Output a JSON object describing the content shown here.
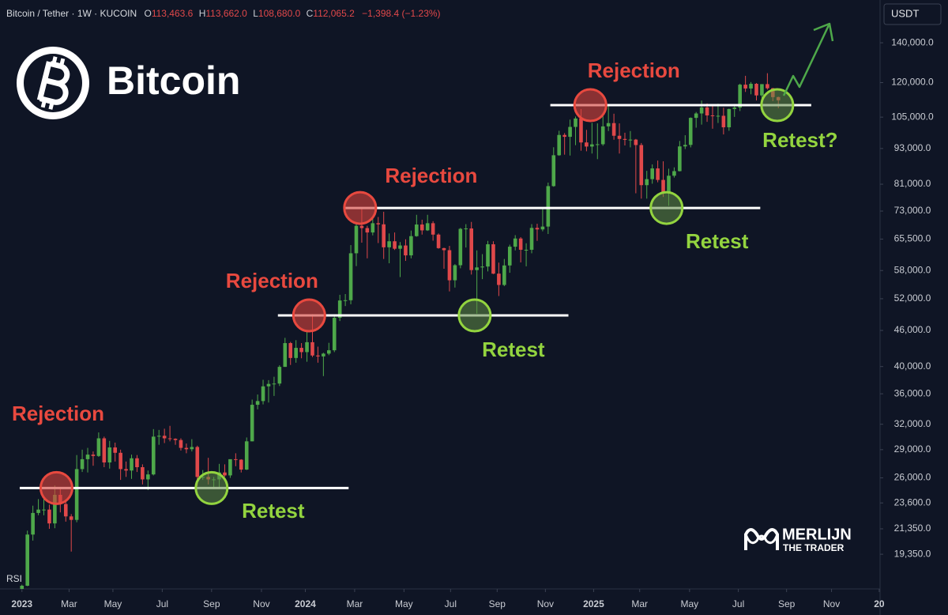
{
  "header": {
    "symbol": "Bitcoin / Tether · 1W · KUCOIN",
    "ohlc": [
      {
        "key": "O",
        "value": "113,463.6"
      },
      {
        "key": "H",
        "value": "113,662.0"
      },
      {
        "key": "L",
        "value": "108,680.0"
      },
      {
        "key": "C",
        "value": "112,065.2"
      }
    ],
    "change": "−1,398.4 (−1.23%)"
  },
  "logo": {
    "name": "Bitcoin"
  },
  "currency": "USDT",
  "indicator": "RSI",
  "watermark": {
    "line1": "MERLIJN",
    "line2": "THE TRADER"
  },
  "chart_data": {
    "type": "candlestick",
    "log_scale": true,
    "up_color": "#4ea84a",
    "down_color": "#e0484a",
    "xlim": [
      -4,
      156.7
    ],
    "xticks": [
      {
        "value": 0,
        "label": "2023"
      },
      {
        "value": 8.6,
        "label": "Mar"
      },
      {
        "value": 16.6,
        "label": "May"
      },
      {
        "value": 25.6,
        "label": "Jul"
      },
      {
        "value": 34.6,
        "label": "Sep"
      },
      {
        "value": 43.7,
        "label": "Nov"
      },
      {
        "value": 51.7,
        "label": "2024"
      },
      {
        "value": 60.7,
        "label": "Mar"
      },
      {
        "value": 69.7,
        "label": "May"
      },
      {
        "value": 78.2,
        "label": "Jul"
      },
      {
        "value": 86.7,
        "label": "Sep"
      },
      {
        "value": 95.5,
        "label": "Nov"
      },
      {
        "value": 104.3,
        "label": "2025"
      },
      {
        "value": 112.7,
        "label": "Mar"
      },
      {
        "value": 121.8,
        "label": "May"
      },
      {
        "value": 130.7,
        "label": "Jul"
      },
      {
        "value": 139.5,
        "label": "Sep"
      },
      {
        "value": 147.7,
        "label": "Nov"
      },
      {
        "value": 156.4,
        "label": "20"
      }
    ],
    "ylim": [
      16920,
      165200
    ],
    "yticks": [
      {
        "value": 19350,
        "label": "19,350.0"
      },
      {
        "value": 21350,
        "label": "21,350.0"
      },
      {
        "value": 23600,
        "label": "23,600.0"
      },
      {
        "value": 26000,
        "label": "26,000.0"
      },
      {
        "value": 29000,
        "label": "29,000.0"
      },
      {
        "value": 32000,
        "label": "32,000.0"
      },
      {
        "value": 36000,
        "label": "36,000.0"
      },
      {
        "value": 40000,
        "label": "40,000.0"
      },
      {
        "value": 46000,
        "label": "46,000.0"
      },
      {
        "value": 52000,
        "label": "52,000.0"
      },
      {
        "value": 58000,
        "label": "58,000.0"
      },
      {
        "value": 65500,
        "label": "65,500.0"
      },
      {
        "value": 73000,
        "label": "73,000.0"
      },
      {
        "value": 81000,
        "label": "81,000.0"
      },
      {
        "value": 93000,
        "label": "93,000.0"
      },
      {
        "value": 105000,
        "label": "105,000.0"
      },
      {
        "value": 120000,
        "label": "120,000.0"
      },
      {
        "value": 140000,
        "label": "140,000.0"
      }
    ],
    "open": [
      16600,
      17130,
      20880,
      22700,
      23000,
      23000,
      21800,
      24350,
      23500,
      22400,
      22100,
      26900,
      27950,
      28450,
      28300,
      30300,
      27600,
      29250,
      28650,
      26900,
      26750,
      28050,
      27100,
      25850,
      26350,
      30500,
      30600,
      30300,
      30250,
      30100,
      29200,
      29050,
      29300,
      26100,
      26100,
      25850,
      25850,
      26550,
      26250,
      27950,
      27900,
      26850,
      29950,
      34500,
      35000,
      37050,
      37400,
      37450,
      39950,
      43800,
      41350,
      43000,
      42300,
      43950,
      41750,
      41600,
      42050,
      42600,
      48300,
      51650,
      51700,
      62000,
      68950,
      68350,
      67200,
      69650,
      69350,
      63450,
      64950,
      63100,
      63900,
      61500,
      66250,
      69300,
      67750,
      69650,
      66650,
      63250,
      62750,
      55850,
      59200,
      68150,
      68250,
      58100,
      58700,
      58900,
      64200,
      57300,
      54850,
      59150,
      63600,
      65650,
      62850,
      62850,
      68400,
      68000,
      68750,
      80400,
      90600,
      98000,
      97300,
      101100,
      104450,
      95200,
      93700,
      94500,
      94550,
      101300,
      102600,
      97700,
      96500,
      96150,
      96250,
      94250,
      80700,
      82600,
      86100,
      82350,
      78350,
      83700,
      85200,
      93750,
      94300,
      104700,
      106500,
      109000,
      105700,
      105550,
      105550,
      100950,
      108350,
      108950,
      119050,
      117300,
      119450,
      114200,
      119300,
      117400,
      113463.6
    ],
    "high": [
      17200,
      21200,
      23350,
      23950,
      24250,
      23450,
      25250,
      25000,
      23900,
      22600,
      28400,
      29000,
      29200,
      28800,
      31000,
      30500,
      30000,
      29800,
      29000,
      27700,
      28450,
      28400,
      27400,
      26750,
      31400,
      31300,
      31450,
      31800,
      30300,
      30300,
      29700,
      30200,
      29450,
      26800,
      28100,
      26100,
      27450,
      27400,
      27500,
      28600,
      27950,
      30400,
      35200,
      35900,
      38000,
      37950,
      38450,
      40200,
      44700,
      44000,
      44300,
      43800,
      45900,
      49000,
      43200,
      42200,
      43850,
      48600,
      52800,
      52950,
      64000,
      70000,
      73800,
      68950,
      71600,
      71350,
      72800,
      66950,
      67200,
      64750,
      65450,
      67700,
      71950,
      70600,
      71950,
      70200,
      66950,
      63350,
      63800,
      59450,
      68400,
      69400,
      70000,
      62700,
      61800,
      65050,
      64950,
      59800,
      60650,
      64100,
      66500,
      66000,
      64450,
      69400,
      69500,
      73600,
      81500,
      93450,
      99600,
      98700,
      104000,
      105250,
      108350,
      99950,
      102700,
      102500,
      106400,
      109600,
      106400,
      102500,
      98850,
      99500,
      96500,
      95000,
      85300,
      87450,
      88750,
      88500,
      86000,
      86450,
      95750,
      97900,
      104900,
      107100,
      111950,
      110700,
      110500,
      110600,
      108900,
      108500,
      110500,
      119500,
      123200,
      120250,
      119800,
      119300,
      124450,
      117600,
      113662
    ],
    "low": [
      16550,
      17100,
      20400,
      22500,
      22500,
      21350,
      21400,
      22750,
      21950,
      19550,
      21900,
      26600,
      26550,
      27250,
      28200,
      27100,
      26950,
      27700,
      25800,
      26100,
      25900,
      26600,
      25350,
      24800,
      26250,
      29550,
      29750,
      29950,
      29550,
      28900,
      28600,
      28800,
      25200,
      25800,
      25350,
      24900,
      24950,
      26100,
      26000,
      27200,
      26550,
      26800,
      29950,
      33900,
      34550,
      34800,
      35700,
      37100,
      39950,
      40250,
      40600,
      41300,
      40750,
      41500,
      40600,
      38550,
      41800,
      42300,
      47700,
      50550,
      50900,
      59000,
      64600,
      60800,
      66450,
      64500,
      60650,
      59650,
      62800,
      56550,
      60200,
      60800,
      66100,
      66650,
      67600,
      65100,
      63100,
      58400,
      53500,
      54300,
      58500,
      63400,
      57100,
      49100,
      56100,
      57800,
      57200,
      52550,
      54600,
      57500,
      62700,
      59850,
      58950,
      62000,
      65050,
      67500,
      66800,
      80200,
      90400,
      90800,
      90500,
      94200,
      92200,
      92000,
      91200,
      89250,
      94000,
      99500,
      96200,
      91200,
      94100,
      93400,
      78200,
      76600,
      76600,
      81150,
      81600,
      77100,
      74500,
      83100,
      85100,
      92800,
      93400,
      100800,
      102000,
      103100,
      100400,
      102650,
      98200,
      99600,
      105100,
      107500,
      115750,
      114700,
      112000,
      112650,
      116800,
      111700,
      108680
    ],
    "close": [
      17130,
      20880,
      22700,
      23000,
      23000,
      21800,
      24350,
      23500,
      22400,
      22100,
      26900,
      27950,
      28450,
      28300,
      30300,
      27600,
      29250,
      28650,
      26900,
      26750,
      28050,
      27100,
      25850,
      26350,
      30500,
      30600,
      30300,
      30250,
      30100,
      29200,
      29050,
      29300,
      26100,
      26100,
      25850,
      25850,
      26550,
      26250,
      27950,
      27900,
      26850,
      29950,
      34500,
      35000,
      37050,
      37400,
      37450,
      39950,
      43800,
      41350,
      43000,
      42300,
      43950,
      41750,
      41600,
      42050,
      42600,
      48300,
      51650,
      51700,
      62000,
      68950,
      68350,
      67200,
      69650,
      69350,
      63450,
      64950,
      63100,
      63900,
      61500,
      66250,
      69300,
      67750,
      69650,
      66650,
      63250,
      62750,
      55850,
      59200,
      68150,
      68250,
      58100,
      58700,
      58900,
      64200,
      57300,
      54850,
      59150,
      63600,
      65650,
      62850,
      62850,
      68400,
      68000,
      68750,
      80400,
      90600,
      98000,
      97300,
      101100,
      104450,
      95200,
      93700,
      94500,
      94550,
      101300,
      102600,
      97700,
      96500,
      96150,
      96250,
      94250,
      80700,
      82600,
      86100,
      82350,
      78350,
      83700,
      85200,
      93750,
      94300,
      104700,
      106500,
      109000,
      105700,
      105550,
      105550,
      100950,
      108350,
      108950,
      119050,
      117300,
      119450,
      114200,
      119300,
      117400,
      113460,
      112065.2
    ],
    "levels": [
      {
        "y": 25000,
        "x": [
          -0.4,
          59.6
        ]
      },
      {
        "y": 48750,
        "x": [
          46.7,
          99.7
        ]
      },
      {
        "y": 73880,
        "x": [
          59,
          134.7
        ]
      },
      {
        "y": 109980,
        "x": [
          96.4,
          144
        ]
      }
    ],
    "annotations": [
      {
        "text": "Rejection",
        "kind": "rejection",
        "x": 6.3,
        "y": 25000
      },
      {
        "text": "Retest",
        "kind": "retest",
        "x": 34.6,
        "y": 25000
      },
      {
        "text": "Rejection",
        "kind": "rejection",
        "x": 52.4,
        "y": 48750
      },
      {
        "text": "Retest",
        "kind": "retest",
        "x": 82.6,
        "y": 48750
      },
      {
        "text": "Rejection",
        "kind": "rejection",
        "x": 61.7,
        "y": 73880
      },
      {
        "text": "Retest",
        "kind": "retest",
        "x": 117.6,
        "y": 73880
      },
      {
        "text": "Rejection",
        "kind": "rejection",
        "x": 103.7,
        "y": 109980
      },
      {
        "text": "Retest?",
        "kind": "retest",
        "x": 137.8,
        "y": 109980
      }
    ]
  }
}
